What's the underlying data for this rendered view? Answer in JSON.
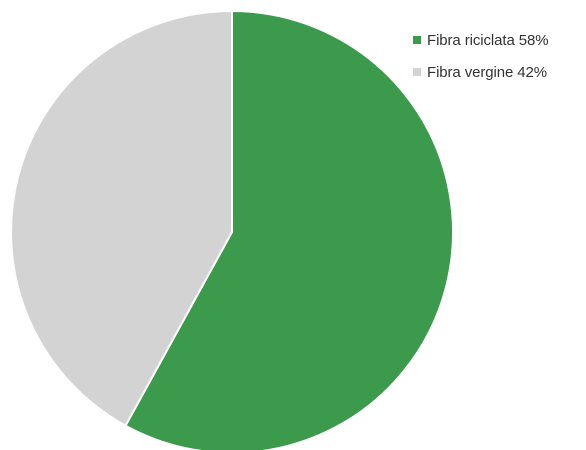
{
  "chart_data": {
    "type": "pie",
    "title": "",
    "categories": [
      "Fibra riciclata",
      "Fibra vergine"
    ],
    "values": [
      58,
      42
    ],
    "units": "%",
    "colors": [
      "#3c9a4c",
      "#d3d3d3"
    ],
    "start_angle_deg": 0,
    "direction": "clockwise",
    "legend": {
      "position": "top-right",
      "items": [
        {
          "label": "Fibra riciclata 58%",
          "color": "#3c9a4c"
        },
        {
          "label": "Fibra vergine 42%",
          "color": "#d3d3d3"
        }
      ]
    }
  }
}
